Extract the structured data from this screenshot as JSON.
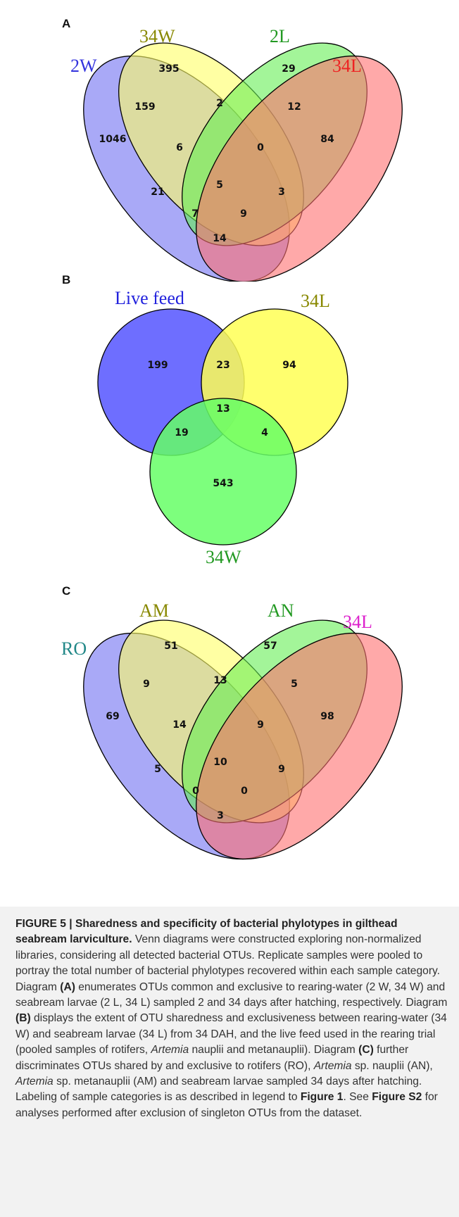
{
  "panels": {
    "a": {
      "letter": "A",
      "sets": [
        {
          "label": "2W",
          "color": "#3333dd"
        },
        {
          "label": "34W",
          "color": "#888800"
        },
        {
          "label": "2L",
          "color": "#229922"
        },
        {
          "label": "34L",
          "color": "#ee2222"
        }
      ],
      "regions": {
        "only_1": "1046",
        "only_2": "395",
        "only_3": "29",
        "only_4": "84",
        "r12": "159",
        "r23": "2",
        "r34": "12",
        "r13": "21",
        "r24": "3",
        "r14": "14",
        "r123": "6",
        "r234": "0",
        "r134": "7",
        "r124": "9",
        "r1234": "5"
      }
    },
    "b": {
      "letter": "B",
      "sets": [
        {
          "label": "Live feed",
          "color": "#2222dd"
        },
        {
          "label": "34L",
          "color": "#888800"
        },
        {
          "label": "34W",
          "color": "#229922"
        }
      ],
      "regions": {
        "only_1": "199",
        "only_2": "94",
        "only_3": "543",
        "r12": "23",
        "r13": "19",
        "r23": "4",
        "r123": "13"
      }
    },
    "c": {
      "letter": "C",
      "sets": [
        {
          "label": "RO",
          "color": "#228888"
        },
        {
          "label": "AM",
          "color": "#888800"
        },
        {
          "label": "AN",
          "color": "#229922"
        },
        {
          "label": "34L",
          "color": "#dd22cc"
        }
      ],
      "regions": {
        "only_1": "69",
        "only_2": "51",
        "only_3": "57",
        "only_4": "98",
        "r12": "9",
        "r23": "13",
        "r34": "5",
        "r13": "5",
        "r24": "9",
        "r14": "3",
        "r123": "14",
        "r234": "9",
        "r134": "0",
        "r124": "0",
        "r1234": "10"
      }
    }
  },
  "caption": {
    "figure_label": "FIGURE 5 | Sharedness and specificity of bacterial phylotypes in gilthead seabream larviculture.",
    "s1": " Venn diagrams were constructed exploring non-normalized libraries, considering all detected bacterial OTUs. Replicate samples were pooled to portray the total number of bacterial phylotypes recovered within each sample category. Diagram ",
    "ref_a": "(A)",
    "s2": " enumerates OTUs common and exclusive to rearing-water (2 W, 34 W) and seabream larvae (2 L, 34 L) sampled 2 and 34 days after hatching, respectively. Diagram ",
    "ref_b": "(B)",
    "s3": " displays the extent of OTU sharedness and exclusiveness between rearing-water (34 W) and seabream larvae (34 L) from 34 DAH, and the live feed used in the rearing trial (pooled samples of rotifers, ",
    "artemia1": "Artemia",
    "s4": " nauplii and metanauplii). Diagram ",
    "ref_c": "(C)",
    "s5": " further discriminates OTUs shared by and exclusive to rotifers (RO), ",
    "artemia2": "Artemia",
    "s6": " sp. nauplii (AN), ",
    "artemia3": "Artemia",
    "s7": " sp. metanauplii (AM) and seabream larvae sampled 34 days after hatching. Labeling of sample categories is as described in legend to ",
    "fig1": "Figure 1",
    "s8": ". See ",
    "figs2": "Figure S2",
    "s9": " for analyses performed after exclusion of singleton OTUs from the dataset."
  }
}
